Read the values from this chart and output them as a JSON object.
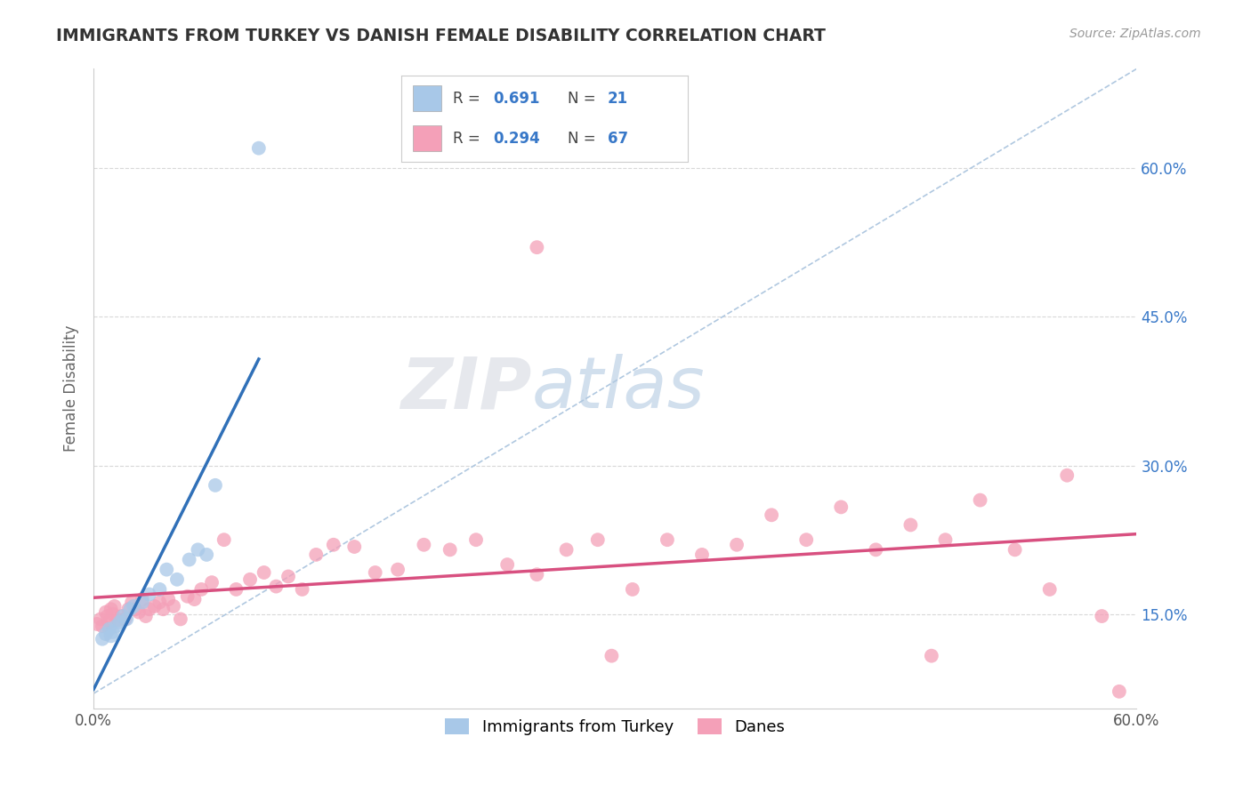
{
  "title": "IMMIGRANTS FROM TURKEY VS DANISH FEMALE DISABILITY CORRELATION CHART",
  "source": "Source: ZipAtlas.com",
  "ylabel": "Female Disability",
  "xlim": [
    0.0,
    0.6
  ],
  "ylim": [
    0.055,
    0.7
  ],
  "yticks": [
    0.15,
    0.3,
    0.45,
    0.6
  ],
  "ytick_labels": [
    "15.0%",
    "30.0%",
    "45.0%",
    "60.0%"
  ],
  "xtick_labels": [
    "0.0%",
    "60.0%"
  ],
  "legend_r1": "0.691",
  "legend_n1": "21",
  "legend_r2": "0.294",
  "legend_n2": "67",
  "legend_label1": "Immigrants from Turkey",
  "legend_label2": "Danes",
  "color_blue": "#a8c8e8",
  "color_pink": "#f4a0b8",
  "line_blue": "#3070b8",
  "line_pink": "#d85080",
  "color_blue_text": "#3878c8",
  "background": "#ffffff",
  "blue_points_x": [
    0.005,
    0.007,
    0.009,
    0.01,
    0.011,
    0.013,
    0.015,
    0.017,
    0.019,
    0.021,
    0.023,
    0.028,
    0.032,
    0.038,
    0.042,
    0.048,
    0.055,
    0.06,
    0.065,
    0.07,
    0.095
  ],
  "blue_points_y": [
    0.125,
    0.13,
    0.135,
    0.128,
    0.132,
    0.138,
    0.142,
    0.148,
    0.145,
    0.155,
    0.158,
    0.162,
    0.17,
    0.175,
    0.195,
    0.185,
    0.205,
    0.215,
    0.21,
    0.28,
    0.62
  ],
  "pink_points_x": [
    0.002,
    0.004,
    0.005,
    0.007,
    0.008,
    0.009,
    0.01,
    0.011,
    0.012,
    0.014,
    0.016,
    0.018,
    0.02,
    0.022,
    0.024,
    0.026,
    0.028,
    0.03,
    0.032,
    0.035,
    0.038,
    0.04,
    0.043,
    0.046,
    0.05,
    0.054,
    0.058,
    0.062,
    0.068,
    0.075,
    0.082,
    0.09,
    0.098,
    0.105,
    0.112,
    0.12,
    0.128,
    0.138,
    0.15,
    0.162,
    0.175,
    0.19,
    0.205,
    0.22,
    0.238,
    0.255,
    0.272,
    0.29,
    0.31,
    0.33,
    0.35,
    0.37,
    0.39,
    0.41,
    0.43,
    0.45,
    0.47,
    0.49,
    0.51,
    0.53,
    0.55,
    0.56,
    0.58,
    0.59,
    0.298,
    0.482,
    0.255
  ],
  "pink_points_y": [
    0.14,
    0.145,
    0.138,
    0.152,
    0.148,
    0.142,
    0.155,
    0.15,
    0.158,
    0.144,
    0.148,
    0.145,
    0.155,
    0.162,
    0.155,
    0.152,
    0.165,
    0.148,
    0.155,
    0.158,
    0.162,
    0.155,
    0.165,
    0.158,
    0.145,
    0.168,
    0.165,
    0.175,
    0.182,
    0.225,
    0.175,
    0.185,
    0.192,
    0.178,
    0.188,
    0.175,
    0.21,
    0.22,
    0.218,
    0.192,
    0.195,
    0.22,
    0.215,
    0.225,
    0.2,
    0.19,
    0.215,
    0.225,
    0.175,
    0.225,
    0.21,
    0.22,
    0.25,
    0.225,
    0.258,
    0.215,
    0.24,
    0.225,
    0.265,
    0.215,
    0.175,
    0.29,
    0.148,
    0.072,
    0.108,
    0.108,
    0.52
  ],
  "blue_line_xlim": [
    0.0,
    0.095
  ],
  "diag_line": [
    [
      0.0,
      0.6
    ],
    [
      0.07,
      0.7
    ]
  ]
}
